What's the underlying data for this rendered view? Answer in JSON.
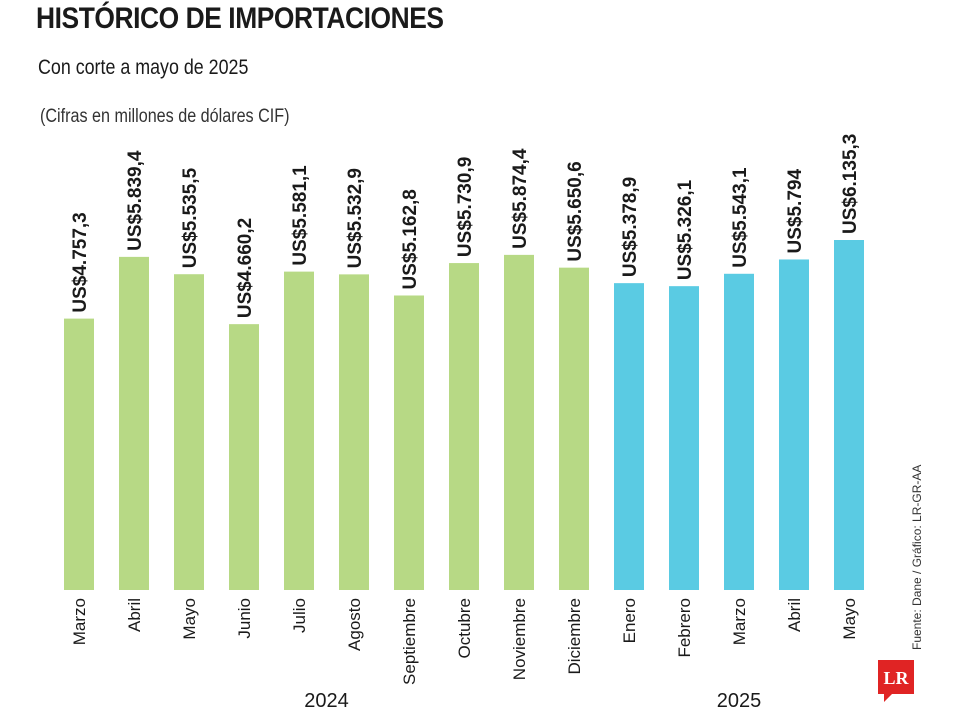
{
  "header": {
    "title": "HISTÓRICO DE IMPORTACIONES",
    "subtitle": "Con corte a mayo de 2025",
    "units": "(Cifras en millones de dólares CIF)"
  },
  "source": "Fuente: Dane / Gráfico: LR-GR-AA",
  "logo": {
    "text": "LR",
    "color": "#e02424"
  },
  "colors": {
    "year2024": "#b7d985",
    "year2025": "#5acbe3"
  },
  "chart_data": {
    "type": "bar",
    "title": "HISTÓRICO DE IMPORTACIONES",
    "subtitle": "Con corte a mayo de 2025",
    "ylabel": "Millones de dólares CIF",
    "ylim": [
      0,
      6400
    ],
    "grid": false,
    "categories": [
      "Marzo",
      "Abril",
      "Mayo",
      "Junio",
      "Julio",
      "Agosto",
      "Septiembre",
      "Octubre",
      "Noviembre",
      "Diciembre",
      "Enero",
      "Febrero",
      "Marzo",
      "Abril",
      "Mayo"
    ],
    "values": [
      4757.3,
      5839.4,
      5535.5,
      4660.2,
      5581.1,
      5532.9,
      5162.8,
      5730.9,
      5874.4,
      5650.6,
      5378.9,
      5326.1,
      5543.1,
      5794,
      6135.3
    ],
    "labels": [
      "US$4.757,3",
      "US$5.839,4",
      "US$5.535,5",
      "US$4.660,2",
      "US$5.581,1",
      "US$5.532,9",
      "US$5.162,8",
      "US$5.730,9",
      "US$5.874,4",
      "US$5.650,6",
      "US$5.378,9",
      "US$5.326,1",
      "US$5.543,1",
      "US$5.794",
      "US$6.135,3"
    ],
    "groups": [
      {
        "year": "2024",
        "count": 10
      },
      {
        "year": "2025",
        "count": 5
      }
    ]
  }
}
